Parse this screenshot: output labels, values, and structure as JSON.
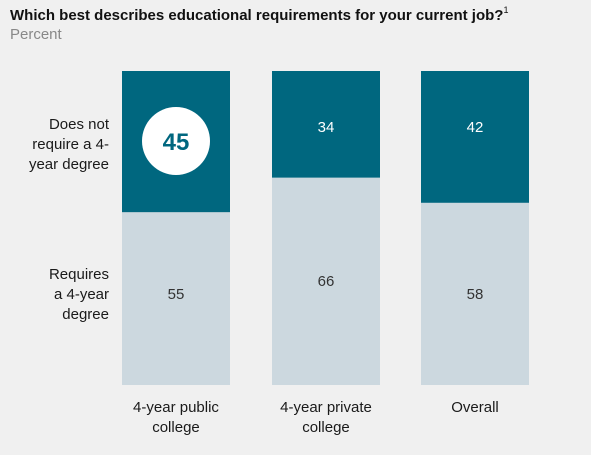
{
  "header": {
    "title": "Which best describes educational requirements for your current job?",
    "footnote_marker": "1",
    "subtitle": "Percent"
  },
  "row_labels": {
    "top": "Does not require a 4-year degree",
    "top_lines": [
      "Does not",
      "require a 4-",
      "year degree"
    ],
    "bottom": "Requires a 4-year degree",
    "bottom_lines": [
      "Requires",
      "a 4-year",
      "degree"
    ]
  },
  "colors": {
    "does_not_require": "#00677f",
    "requires": "#ccd8df",
    "highlight_circle": "#ffffff",
    "highlight_text": "#00677f",
    "dark_label": "#ffffff",
    "light_label": "#333333"
  },
  "chart_data": {
    "type": "bar",
    "stacked": true,
    "normalized": true,
    "title": "Which best describes educational requirements for your current job?",
    "subtitle": "Percent",
    "categories": [
      "4-year public college",
      "4-year private college",
      "Overall"
    ],
    "series": [
      {
        "name": "Does not require a 4-year degree",
        "values": [
          45,
          34,
          42
        ]
      },
      {
        "name": "Requires a 4-year degree",
        "values": [
          55,
          66,
          58
        ]
      }
    ],
    "highlighted": {
      "series": 0,
      "category": 0
    },
    "ylim": [
      0,
      100
    ],
    "grid": false
  }
}
